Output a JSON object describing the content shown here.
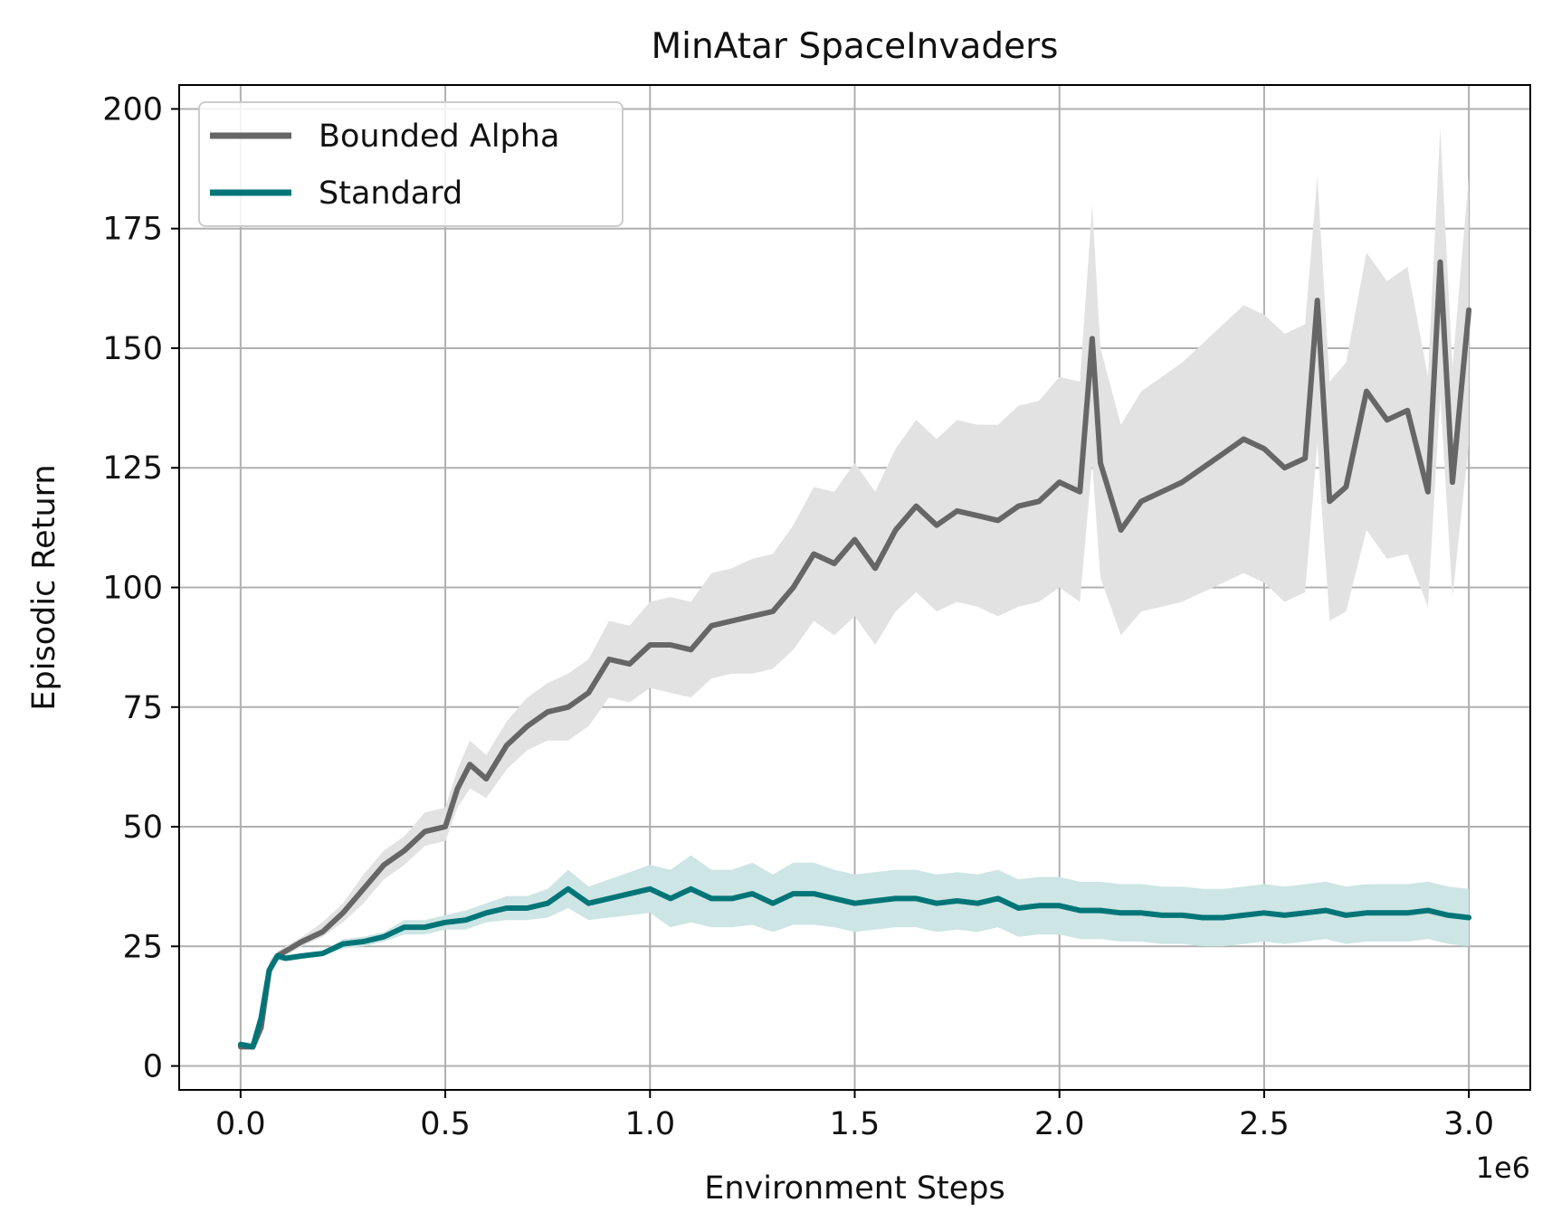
{
  "chart_data": {
    "type": "line",
    "title": "MinAtar SpaceInvaders",
    "xlabel": "Environment Steps",
    "ylabel": "Episodic Return",
    "x_scale_label": "1e6",
    "xlim": [
      -150000,
      3150000
    ],
    "ylim": [
      -5,
      205
    ],
    "xticks": [
      0,
      500000,
      1000000,
      1500000,
      2000000,
      2500000,
      3000000
    ],
    "xtick_labels": [
      "0.0",
      "0.5",
      "1.0",
      "1.5",
      "2.0",
      "2.5",
      "3.0"
    ],
    "yticks": [
      0,
      25,
      50,
      75,
      100,
      125,
      150,
      175,
      200
    ],
    "ytick_labels": [
      "0",
      "25",
      "50",
      "75",
      "100",
      "125",
      "150",
      "175",
      "200"
    ],
    "grid": true,
    "legend_position": "upper-left",
    "series": [
      {
        "name": "Bounded Alpha",
        "color": "#666666",
        "band_color": "#e2e2e2",
        "x": [
          0,
          30000,
          50000,
          70000,
          90000,
          110000,
          150000,
          200000,
          250000,
          300000,
          350000,
          400000,
          450000,
          500000,
          530000,
          560000,
          600000,
          650000,
          700000,
          750000,
          800000,
          850000,
          900000,
          950000,
          1000000,
          1050000,
          1100000,
          1150000,
          1200000,
          1250000,
          1300000,
          1350000,
          1400000,
          1450000,
          1500000,
          1550000,
          1600000,
          1650000,
          1700000,
          1750000,
          1800000,
          1850000,
          1900000,
          1950000,
          2000000,
          2050000,
          2080000,
          2100000,
          2150000,
          2200000,
          2250000,
          2300000,
          2350000,
          2400000,
          2450000,
          2500000,
          2550000,
          2600000,
          2630000,
          2660000,
          2700000,
          2750000,
          2800000,
          2850000,
          2900000,
          2930000,
          2960000,
          3000000
        ],
        "y": [
          4,
          4,
          8,
          20,
          23,
          24,
          26,
          28,
          32,
          37,
          42,
          45,
          49,
          50,
          58,
          63,
          60,
          67,
          71,
          74,
          75,
          78,
          85,
          84,
          88,
          88,
          87,
          92,
          93,
          94,
          95,
          100,
          107,
          105,
          110,
          104,
          112,
          117,
          113,
          116,
          115,
          114,
          117,
          118,
          122,
          120,
          152,
          126,
          112,
          118,
          120,
          122,
          125,
          128,
          131,
          129,
          125,
          127,
          160,
          118,
          121,
          141,
          135,
          137,
          120,
          168,
          122,
          158
        ],
        "y_lower": [
          4,
          4,
          7,
          18,
          22,
          23,
          25,
          27,
          30,
          34,
          39,
          42,
          46,
          47,
          54,
          58,
          56,
          62,
          66,
          68,
          68,
          71,
          77,
          76,
          79,
          78,
          77,
          81,
          82,
          82,
          83,
          87,
          93,
          90,
          94,
          88,
          95,
          99,
          95,
          97,
          96,
          94,
          96,
          97,
          100,
          97,
          126,
          102,
          90,
          95,
          96,
          97,
          99,
          101,
          103,
          101,
          97,
          99,
          130,
          93,
          95,
          112,
          106,
          107,
          96,
          140,
          98,
          130
        ],
        "y_upper": [
          5,
          5,
          9,
          22,
          24,
          25,
          27,
          30,
          34,
          40,
          45,
          48,
          53,
          54,
          62,
          68,
          65,
          72,
          77,
          80,
          82,
          85,
          93,
          92,
          97,
          98,
          97,
          103,
          104,
          106,
          107,
          113,
          121,
          120,
          126,
          120,
          129,
          135,
          131,
          135,
          134,
          134,
          138,
          139,
          144,
          143,
          180,
          150,
          134,
          141,
          144,
          147,
          151,
          155,
          159,
          157,
          153,
          155,
          186,
          143,
          147,
          170,
          164,
          167,
          144,
          196,
          146,
          186
        ]
      },
      {
        "name": "Standard",
        "color": "#007577",
        "band_color": "#cde5e4",
        "x": [
          0,
          30000,
          50000,
          70000,
          90000,
          110000,
          150000,
          200000,
          250000,
          300000,
          350000,
          400000,
          450000,
          500000,
          550000,
          600000,
          650000,
          700000,
          750000,
          800000,
          850000,
          900000,
          950000,
          1000000,
          1050000,
          1100000,
          1150000,
          1200000,
          1250000,
          1300000,
          1350000,
          1400000,
          1450000,
          1500000,
          1550000,
          1600000,
          1650000,
          1700000,
          1750000,
          1800000,
          1850000,
          1900000,
          1950000,
          2000000,
          2050000,
          2100000,
          2150000,
          2200000,
          2250000,
          2300000,
          2350000,
          2400000,
          2450000,
          2500000,
          2550000,
          2600000,
          2650000,
          2700000,
          2750000,
          2800000,
          2850000,
          2900000,
          2950000,
          3000000
        ],
        "y": [
          4.5,
          4,
          10,
          20,
          23,
          22.5,
          23,
          23.5,
          25.5,
          26,
          27,
          29,
          29,
          30,
          30.5,
          32,
          33,
          33,
          34,
          37,
          34,
          35,
          36,
          37,
          35,
          37,
          35,
          35,
          36,
          34,
          36,
          36,
          35,
          34,
          34.5,
          35,
          35,
          34,
          34.5,
          34,
          35,
          33,
          33.5,
          33.5,
          32.5,
          32.5,
          32,
          32,
          31.5,
          31.5,
          31,
          31,
          31.5,
          32,
          31.5,
          32,
          32.5,
          31.5,
          32,
          32,
          32,
          32.5,
          31.5,
          31
        ],
        "y_lower": [
          4,
          3.5,
          9,
          19,
          22,
          22,
          22.5,
          23,
          24.5,
          25,
          26,
          27.5,
          27.5,
          28.5,
          28.5,
          30,
          30.5,
          30.5,
          31,
          33,
          30.5,
          31,
          31.5,
          32,
          29,
          30,
          29,
          29,
          29.5,
          28,
          29.5,
          29.5,
          29,
          28,
          28.5,
          29,
          29,
          28,
          28.5,
          28,
          29,
          27,
          27.5,
          27.5,
          26.5,
          26.5,
          26,
          26,
          25.5,
          25.5,
          25,
          25,
          25.5,
          26,
          25.5,
          26,
          26.5,
          25.5,
          26,
          26,
          26,
          26.5,
          25.5,
          25
        ],
        "y_upper": [
          5,
          4.5,
          11,
          21,
          24,
          23,
          23.5,
          24,
          26.5,
          27,
          28,
          30.5,
          30.5,
          31.5,
          32.5,
          34,
          35.5,
          35.5,
          37,
          41,
          37.5,
          39,
          40.5,
          42,
          41,
          44,
          41,
          41,
          42.5,
          40,
          42.5,
          42.5,
          41,
          40,
          40.5,
          41,
          41,
          40,
          40.5,
          40,
          41,
          39,
          39.5,
          39.5,
          38.5,
          38.5,
          38,
          38,
          37.5,
          37.5,
          37,
          37,
          37.5,
          38,
          37.5,
          38,
          38.5,
          37.5,
          38,
          38,
          38,
          38.5,
          37.5,
          37
        ]
      }
    ]
  }
}
